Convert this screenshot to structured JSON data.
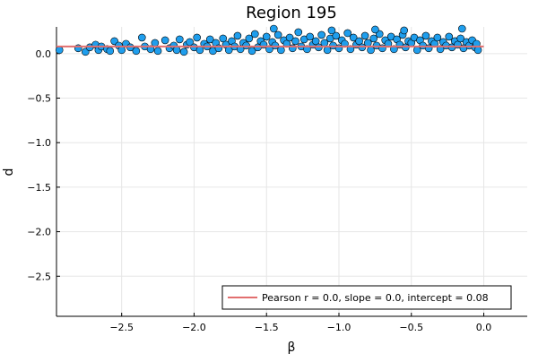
{
  "chart_data": {
    "type": "scatter",
    "title": "Region 195",
    "xlabel": "β",
    "ylabel": "d",
    "xlim": [
      -2.95,
      0.3
    ],
    "ylim": [
      -2.95,
      0.3
    ],
    "x_ticks": [
      {
        "value": -2.5,
        "label": "−2.5"
      },
      {
        "value": -2.0,
        "label": "−2.0"
      },
      {
        "value": -1.5,
        "label": "−1.5"
      },
      {
        "value": -1.0,
        "label": "−1.0"
      },
      {
        "value": -0.5,
        "label": "−0.5"
      },
      {
        "value": 0.0,
        "label": "0.0"
      }
    ],
    "y_ticks": [
      {
        "value": 0.0,
        "label": "0.0"
      },
      {
        "value": -0.5,
        "label": "−0.5"
      },
      {
        "value": -1.0,
        "label": "−1.0"
      },
      {
        "value": -1.5,
        "label": "−1.5"
      },
      {
        "value": -2.0,
        "label": "−2.0"
      },
      {
        "value": -2.5,
        "label": "−2.5"
      }
    ],
    "grid": true,
    "legend": {
      "position": "bottom-right",
      "entries": [
        {
          "label": "Pearson r = 0.0, slope = 0.0, intercept = 0.08",
          "color": "#e26f6f"
        }
      ]
    },
    "series": [
      {
        "kind": "scatter",
        "color": "#1f9eed",
        "points": [
          [
            -2.93,
            0.04
          ],
          [
            -2.8,
            0.06
          ],
          [
            -2.75,
            0.02
          ],
          [
            -2.72,
            0.07
          ],
          [
            -2.68,
            0.1
          ],
          [
            -2.66,
            0.04
          ],
          [
            -2.64,
            0.08
          ],
          [
            -2.6,
            0.05
          ],
          [
            -2.58,
            0.03
          ],
          [
            -2.55,
            0.14
          ],
          [
            -2.52,
            0.09
          ],
          [
            -2.5,
            0.04
          ],
          [
            -2.47,
            0.11
          ],
          [
            -2.44,
            0.07
          ],
          [
            -2.4,
            0.03
          ],
          [
            -2.36,
            0.18
          ],
          [
            -2.34,
            0.08
          ],
          [
            -2.3,
            0.05
          ],
          [
            -2.27,
            0.12
          ],
          [
            -2.25,
            0.03
          ],
          [
            -2.2,
            0.15
          ],
          [
            -2.17,
            0.06
          ],
          [
            -2.14,
            0.09
          ],
          [
            -2.12,
            0.04
          ],
          [
            -2.1,
            0.16
          ],
          [
            -2.07,
            0.02
          ],
          [
            -2.05,
            0.1
          ],
          [
            -2.03,
            0.13
          ],
          [
            -2.0,
            0.07
          ],
          [
            -1.98,
            0.18
          ],
          [
            -1.96,
            0.04
          ],
          [
            -1.93,
            0.11
          ],
          [
            -1.91,
            0.08
          ],
          [
            -1.89,
            0.16
          ],
          [
            -1.87,
            0.03
          ],
          [
            -1.85,
            0.12
          ],
          [
            -1.83,
            0.06
          ],
          [
            -1.8,
            0.17
          ],
          [
            -1.78,
            0.1
          ],
          [
            -1.76,
            0.04
          ],
          [
            -1.74,
            0.14
          ],
          [
            -1.72,
            0.08
          ],
          [
            -1.7,
            0.2
          ],
          [
            -1.68,
            0.05
          ],
          [
            -1.66,
            0.12
          ],
          [
            -1.64,
            0.09
          ],
          [
            -1.62,
            0.17
          ],
          [
            -1.6,
            0.03
          ],
          [
            -1.58,
            0.22
          ],
          [
            -1.56,
            0.07
          ],
          [
            -1.54,
            0.14
          ],
          [
            -1.52,
            0.1
          ],
          [
            -1.5,
            0.19
          ],
          [
            -1.48,
            0.05
          ],
          [
            -1.46,
            0.13
          ],
          [
            -1.44,
            0.09
          ],
          [
            -1.42,
            0.21
          ],
          [
            -1.4,
            0.04
          ],
          [
            -1.38,
            0.15
          ],
          [
            -1.36,
            0.11
          ],
          [
            -1.34,
            0.18
          ],
          [
            -1.32,
            0.06
          ],
          [
            -1.3,
            0.14
          ],
          [
            -1.28,
            0.24
          ],
          [
            -1.26,
            0.08
          ],
          [
            -1.24,
            0.16
          ],
          [
            -1.22,
            0.05
          ],
          [
            -1.2,
            0.19
          ],
          [
            -1.18,
            0.1
          ],
          [
            -1.16,
            0.14
          ],
          [
            -1.14,
            0.07
          ],
          [
            -1.12,
            0.21
          ],
          [
            -1.1,
            0.12
          ],
          [
            -1.08,
            0.04
          ],
          [
            -1.06,
            0.17
          ],
          [
            -1.04,
            0.09
          ],
          [
            -1.02,
            0.2
          ],
          [
            -1.0,
            0.06
          ],
          [
            -0.98,
            0.15
          ],
          [
            -0.96,
            0.11
          ],
          [
            -0.94,
            0.23
          ],
          [
            -0.92,
            0.05
          ],
          [
            -0.9,
            0.18
          ],
          [
            -0.88,
            0.1
          ],
          [
            -0.86,
            0.14
          ],
          [
            -0.84,
            0.07
          ],
          [
            -0.82,
            0.2
          ],
          [
            -0.8,
            0.12
          ],
          [
            -0.78,
            0.04
          ],
          [
            -0.76,
            0.17
          ],
          [
            -0.74,
            0.09
          ],
          [
            -0.72,
            0.22
          ],
          [
            -0.7,
            0.06
          ],
          [
            -0.68,
            0.15
          ],
          [
            -0.66,
            0.11
          ],
          [
            -0.64,
            0.19
          ],
          [
            -0.62,
            0.05
          ],
          [
            -0.6,
            0.16
          ],
          [
            -0.58,
            0.1
          ],
          [
            -0.56,
            0.21
          ],
          [
            -0.54,
            0.07
          ],
          [
            -0.52,
            0.14
          ],
          [
            -0.5,
            0.12
          ],
          [
            -0.48,
            0.18
          ],
          [
            -0.46,
            0.04
          ],
          [
            -0.44,
            0.15
          ],
          [
            -0.42,
            0.09
          ],
          [
            -0.4,
            0.2
          ],
          [
            -0.38,
            0.06
          ],
          [
            -0.36,
            0.14
          ],
          [
            -0.34,
            0.11
          ],
          [
            -0.32,
            0.18
          ],
          [
            -0.3,
            0.05
          ],
          [
            -0.28,
            0.13
          ],
          [
            -0.26,
            0.09
          ],
          [
            -0.24,
            0.19
          ],
          [
            -0.22,
            0.07
          ],
          [
            -0.2,
            0.14
          ],
          [
            -0.18,
            0.1
          ],
          [
            -0.16,
            0.17
          ],
          [
            -0.14,
            0.06
          ],
          [
            -0.12,
            0.13
          ],
          [
            -0.1,
            0.09
          ],
          [
            -0.08,
            0.15
          ],
          [
            -0.06,
            0.07
          ],
          [
            -0.05,
            0.11
          ],
          [
            -0.04,
            0.04
          ],
          [
            -1.45,
            0.28
          ],
          [
            -0.75,
            0.27
          ],
          [
            -0.15,
            0.28
          ],
          [
            -1.05,
            0.26
          ],
          [
            -0.55,
            0.26
          ]
        ]
      },
      {
        "kind": "line",
        "name": "Pearson r = 0.0, slope = 0.0, intercept = 0.08",
        "color": "#e26f6f",
        "points": [
          [
            -2.95,
            0.08
          ],
          [
            0.0,
            0.08
          ]
        ]
      }
    ]
  }
}
